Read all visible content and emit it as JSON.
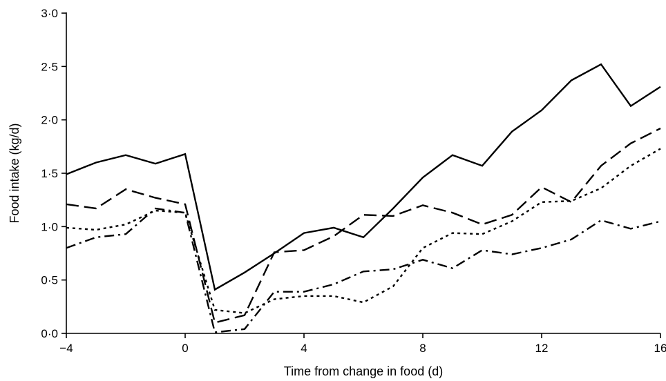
{
  "chart_data": {
    "type": "line",
    "title": "",
    "xlabel": "Time from change in food (d)",
    "ylabel": "Food intake (kg/d)",
    "xlim": [
      -4,
      16
    ],
    "ylim": [
      0,
      3
    ],
    "x_ticks": [
      -4,
      0,
      4,
      8,
      12,
      16
    ],
    "x_tick_labels": [
      "−4",
      "0",
      "4",
      "8",
      "12",
      "16"
    ],
    "y_ticks": [
      0,
      0.5,
      1,
      1.5,
      2,
      2.5,
      3
    ],
    "y_tick_labels": [
      "0·0",
      "0·5",
      "1·0",
      "1·5",
      "2·0",
      "2·5",
      "3·0"
    ],
    "grid": false,
    "legend": "none",
    "x": [
      -4,
      -3,
      -2,
      -1,
      0,
      1,
      2,
      3,
      4,
      5,
      6,
      7,
      8,
      9,
      10,
      11,
      12,
      13,
      14,
      15,
      16
    ],
    "series": [
      {
        "style": "solid",
        "values": [
          1.49,
          1.6,
          1.67,
          1.59,
          1.68,
          0.41,
          0.57,
          0.75,
          0.94,
          0.99,
          0.9,
          1.17,
          1.46,
          1.67,
          1.57,
          1.89,
          2.09,
          2.37,
          2.52,
          2.13,
          2.31
        ]
      },
      {
        "style": "long-dash",
        "values": [
          1.21,
          1.17,
          1.35,
          1.27,
          1.21,
          0.1,
          0.17,
          0.76,
          0.78,
          0.91,
          1.11,
          1.1,
          1.2,
          1.13,
          1.02,
          1.11,
          1.37,
          1.23,
          1.57,
          1.78,
          1.92
        ]
      },
      {
        "style": "dotted",
        "values": [
          0.99,
          0.97,
          1.02,
          1.15,
          1.13,
          0.22,
          0.19,
          0.32,
          0.35,
          0.35,
          0.29,
          0.44,
          0.8,
          0.94,
          0.93,
          1.05,
          1.23,
          1.24,
          1.36,
          1.57,
          1.73
        ]
      },
      {
        "style": "dash-dot",
        "values": [
          0.8,
          0.9,
          0.93,
          1.17,
          1.13,
          0.01,
          0.04,
          0.39,
          0.39,
          0.46,
          0.58,
          0.6,
          0.69,
          0.61,
          0.78,
          0.74,
          0.8,
          0.88,
          1.06,
          0.98,
          1.05
        ]
      }
    ]
  }
}
